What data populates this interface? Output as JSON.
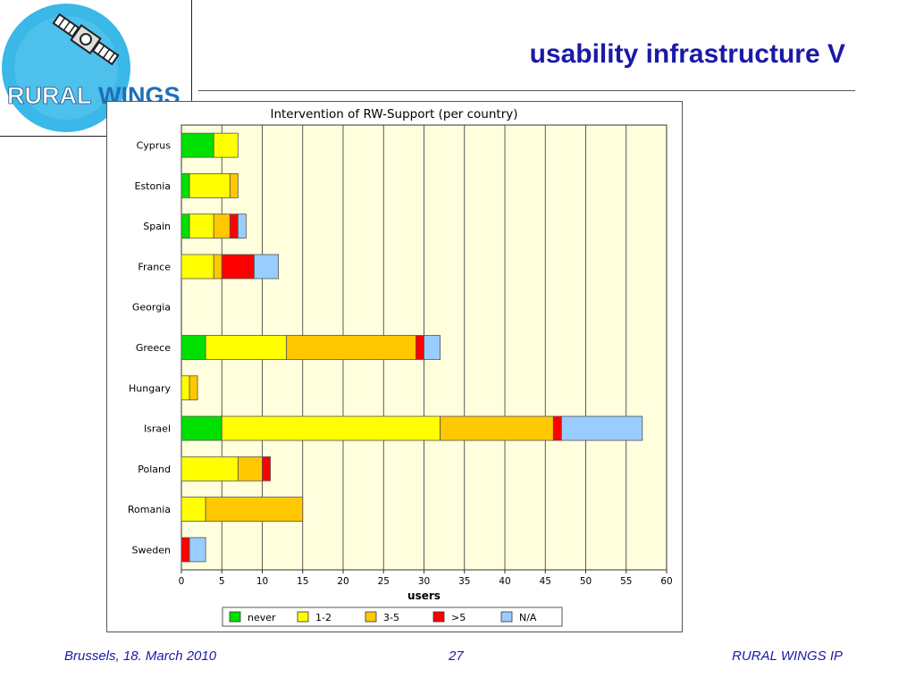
{
  "header": {
    "title": "usability infrastructure V",
    "logo_text_rural": "RURAL",
    "logo_text_wings": "WINGS"
  },
  "footer": {
    "left": "Brussels, 18. March 2010",
    "page_number": "27",
    "right": "RURAL WINGS IP"
  },
  "colors": {
    "title": "#1a1aa6",
    "logo_blue": "#3ab8e8",
    "logo_dark": "#1f4f86"
  },
  "chart_data": {
    "type": "bar",
    "orientation": "horizontal",
    "stacked": true,
    "title": "Intervention of RW-Support (per country)",
    "xlabel": "users",
    "ylabel": "",
    "xlim": [
      0,
      60
    ],
    "xticks": [
      0,
      5,
      10,
      15,
      20,
      25,
      30,
      35,
      40,
      45,
      50,
      55,
      60
    ],
    "grid": "vertical",
    "background": "#ffffdd",
    "legend_position": "bottom",
    "categories": [
      "Cyprus",
      "Estonia",
      "Spain",
      "France",
      "Georgia",
      "Greece",
      "Hungary",
      "Israel",
      "Poland",
      "Romania",
      "Sweden"
    ],
    "series": [
      {
        "name": "never",
        "color": "#00e000",
        "values": [
          4,
          1,
          1,
          0,
          0,
          3,
          0,
          5,
          0,
          0,
          0
        ]
      },
      {
        "name": "1-2",
        "color": "#ffff00",
        "values": [
          3,
          5,
          3,
          4,
          0,
          10,
          1,
          27,
          7,
          3,
          0
        ]
      },
      {
        "name": "3-5",
        "color": "#ffc800",
        "values": [
          0,
          1,
          2,
          1,
          0,
          16,
          1,
          14,
          3,
          12,
          0
        ]
      },
      {
        "name": ">5",
        "color": "#ff0000",
        "values": [
          0,
          0,
          1,
          4,
          0,
          1,
          0,
          1,
          1,
          0,
          1
        ]
      },
      {
        "name": "N/A",
        "color": "#99ccff",
        "values": [
          0,
          0,
          1,
          3,
          0,
          2,
          0,
          10,
          0,
          0,
          2
        ]
      }
    ]
  }
}
